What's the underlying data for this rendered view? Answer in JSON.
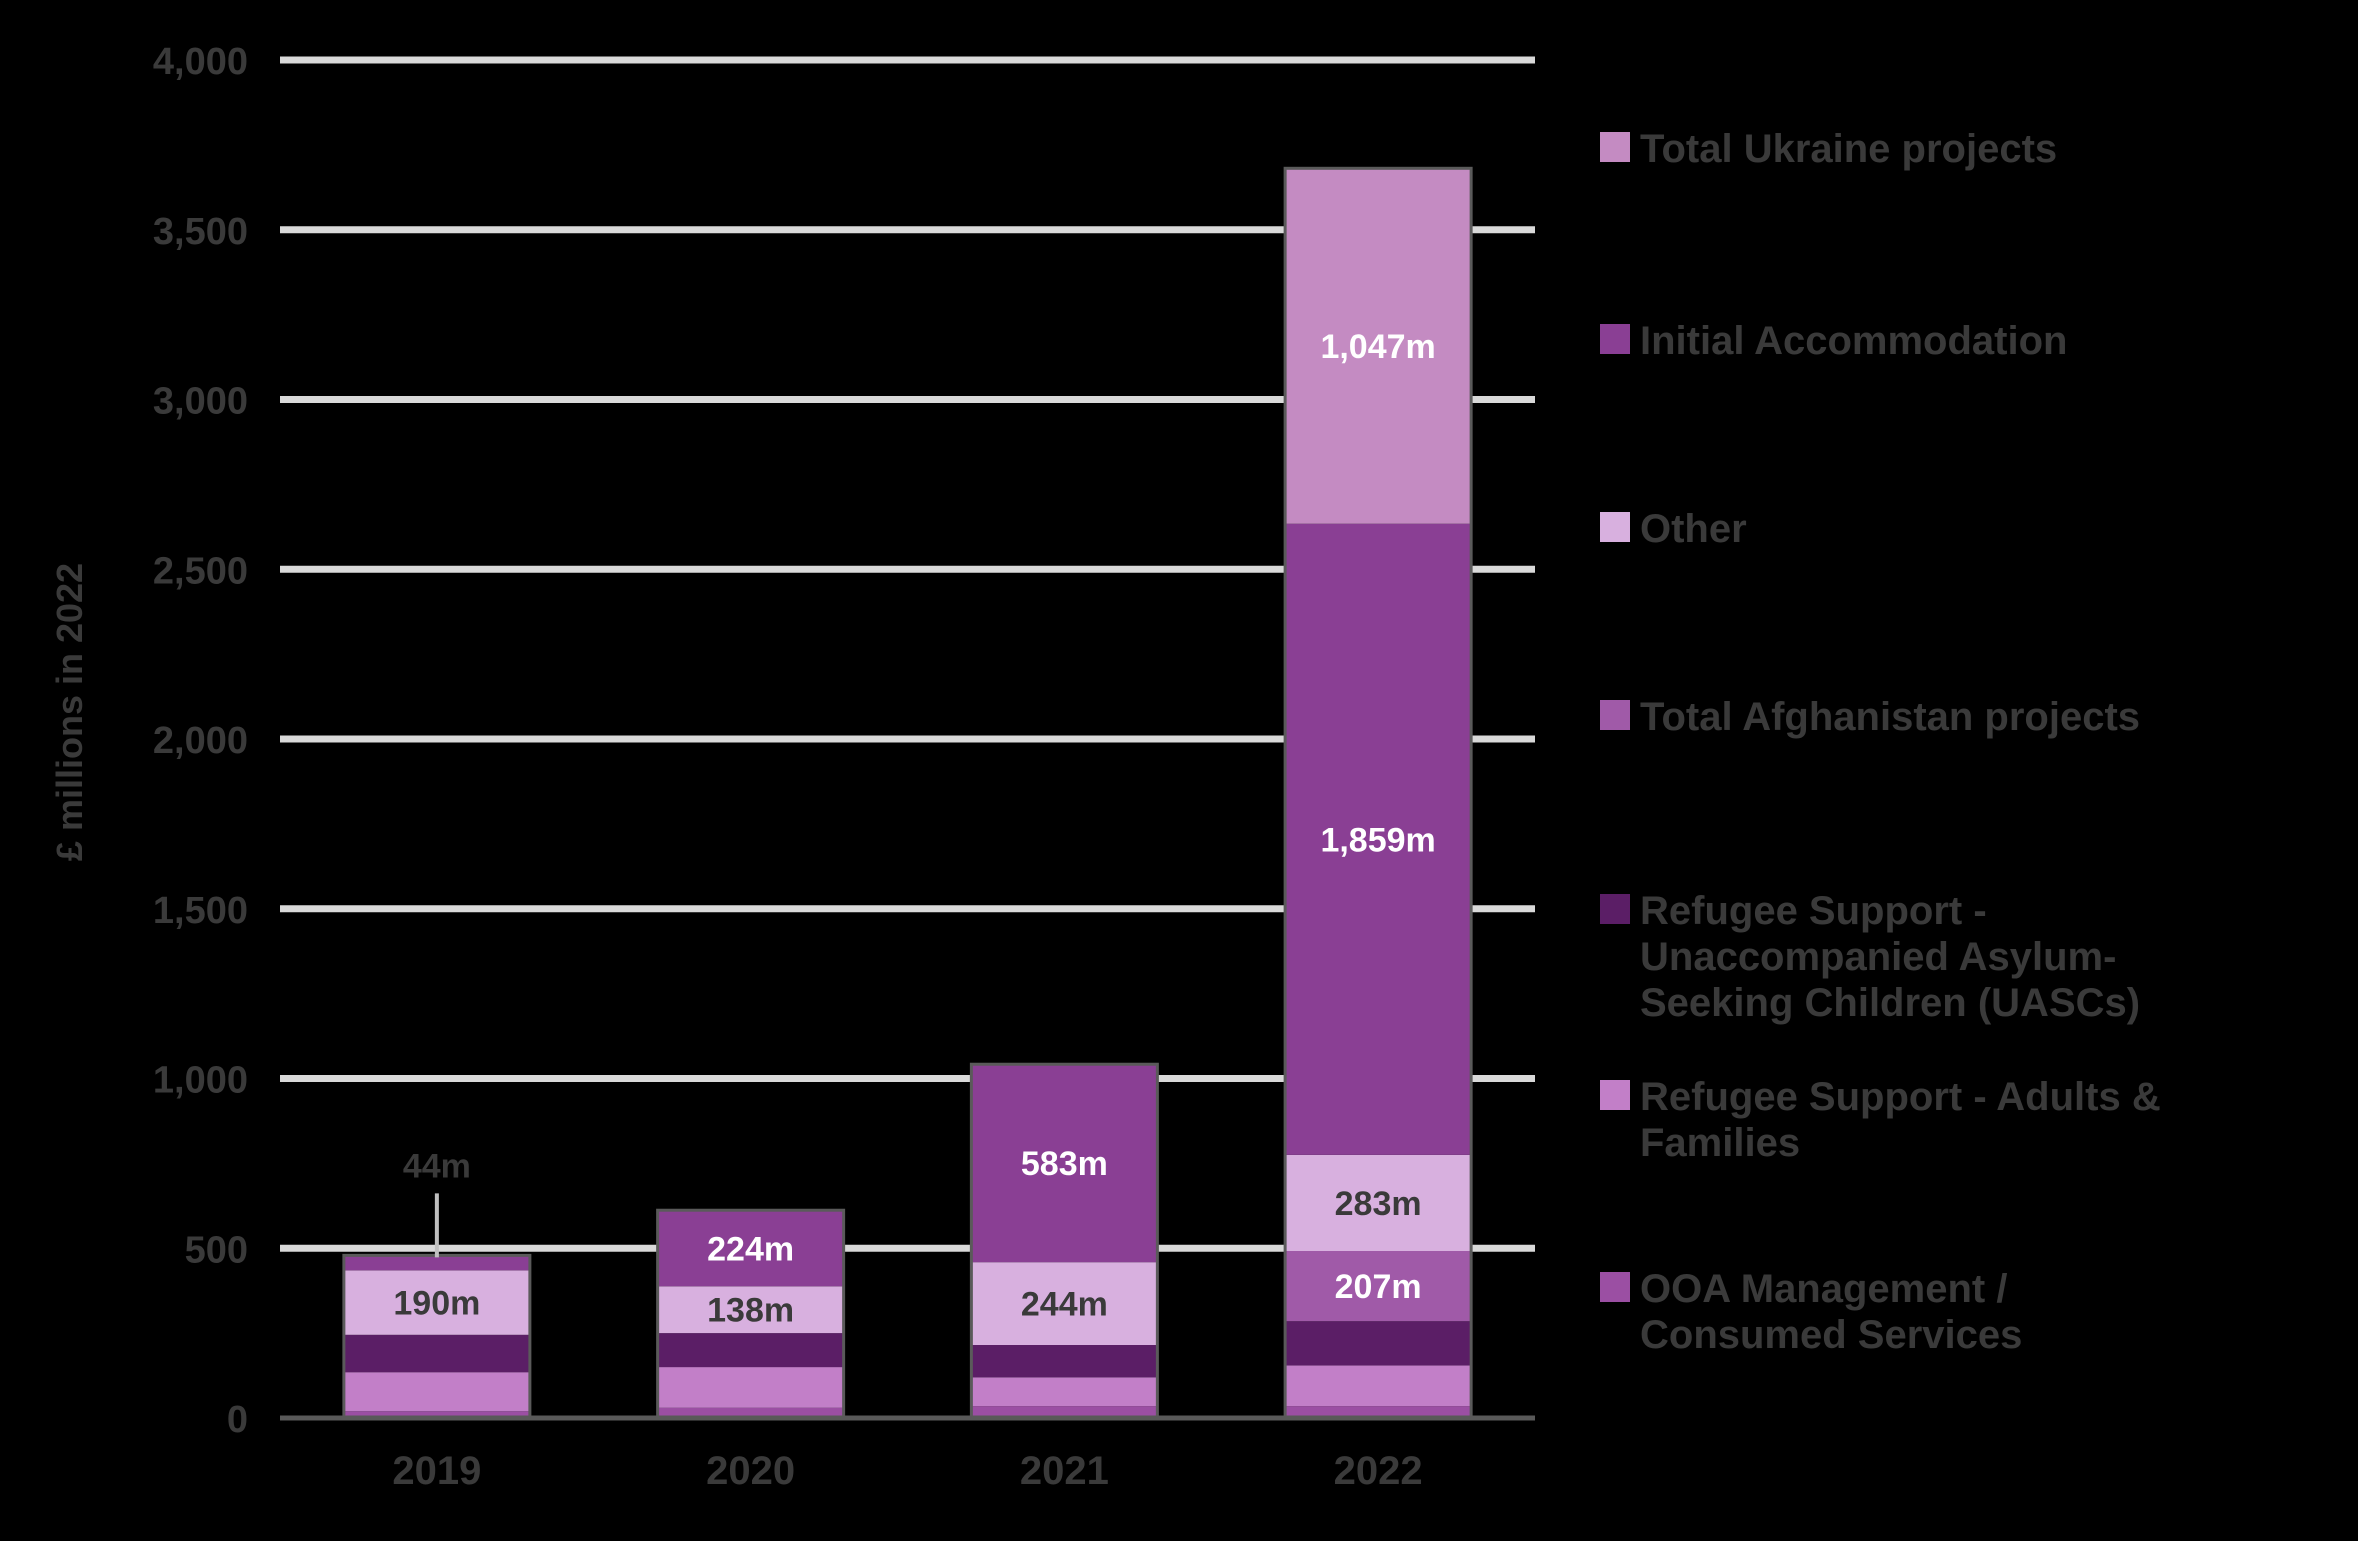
{
  "chart_data": {
    "type": "bar",
    "stacked": true,
    "title": "",
    "xlabel": "",
    "ylabel": "£ millions in 2022",
    "ylim": [
      0,
      4000
    ],
    "yticks": [
      0,
      500,
      1000,
      1500,
      2000,
      2500,
      3000,
      3500,
      4000
    ],
    "ytick_labels": [
      "0",
      "500",
      "1,000",
      "1,500",
      "2,000",
      "2,500",
      "3,000",
      "3,500",
      "4,000"
    ],
    "grid": true,
    "legend_position": "right",
    "categories": [
      "2019",
      "2020",
      "2021",
      "2022"
    ],
    "series": [
      {
        "name": "OOA Management / Consumed Services",
        "color": "#9b4fa3",
        "values": [
          20,
          30,
          35,
          35
        ]
      },
      {
        "name": "Refugee Support - Adults & Families",
        "color": "#c27fc8",
        "values": [
          115,
          120,
          85,
          120
        ]
      },
      {
        "name": "Refugee Support - Unaccompanied Asylum-Seeking Children (UASCs)",
        "color": "#5b1e66",
        "values": [
          110,
          100,
          95,
          130
        ]
      },
      {
        "name": "Total Afghanistan projects",
        "color": "#a05aa8",
        "values": [
          0,
          0,
          0,
          207
        ]
      },
      {
        "name": "Other",
        "color": "#d8b0df",
        "values": [
          190,
          138,
          244,
          283
        ]
      },
      {
        "name": "Initial Accommodation",
        "color": "#8a3f94",
        "values": [
          44,
          224,
          583,
          1859
        ]
      },
      {
        "name": "Total Ukraine projects",
        "color": "#c48bc2",
        "values": [
          0,
          0,
          0,
          1047
        ]
      }
    ],
    "data_labels": [
      {
        "category": "2019",
        "series": "Other",
        "text": "190m",
        "color": "#3a3a3a"
      },
      {
        "category": "2019",
        "series": "Initial Accommodation",
        "text": "44m",
        "color": "#3a3a3a",
        "callout": true
      },
      {
        "category": "2020",
        "series": "Other",
        "text": "138m",
        "color": "#3a3a3a"
      },
      {
        "category": "2020",
        "series": "Initial Accommodation",
        "text": "224m",
        "color": "#ffffff"
      },
      {
        "category": "2021",
        "series": "Other",
        "text": "244m",
        "color": "#3a3a3a"
      },
      {
        "category": "2021",
        "series": "Initial Accommodation",
        "text": "583m",
        "color": "#ffffff"
      },
      {
        "category": "2022",
        "series": "Total Afghanistan projects",
        "text": "207m",
        "color": "#ffffff"
      },
      {
        "category": "2022",
        "series": "Other",
        "text": "283m",
        "color": "#3a3a3a"
      },
      {
        "category": "2022",
        "series": "Initial Accommodation",
        "text": "1,859m",
        "color": "#ffffff"
      },
      {
        "category": "2022",
        "series": "Total Ukraine projects",
        "text": "1,047m",
        "color": "#ffffff"
      }
    ],
    "legend_order": [
      "Total Ukraine projects",
      "Initial Accommodation",
      "Other",
      "Total Afghanistan projects",
      "Refugee Support - Unaccompanied Asylum-Seeking Children (UASCs)",
      "Refugee Support - Adults & Families",
      "OOA Management / Consumed Services"
    ]
  }
}
